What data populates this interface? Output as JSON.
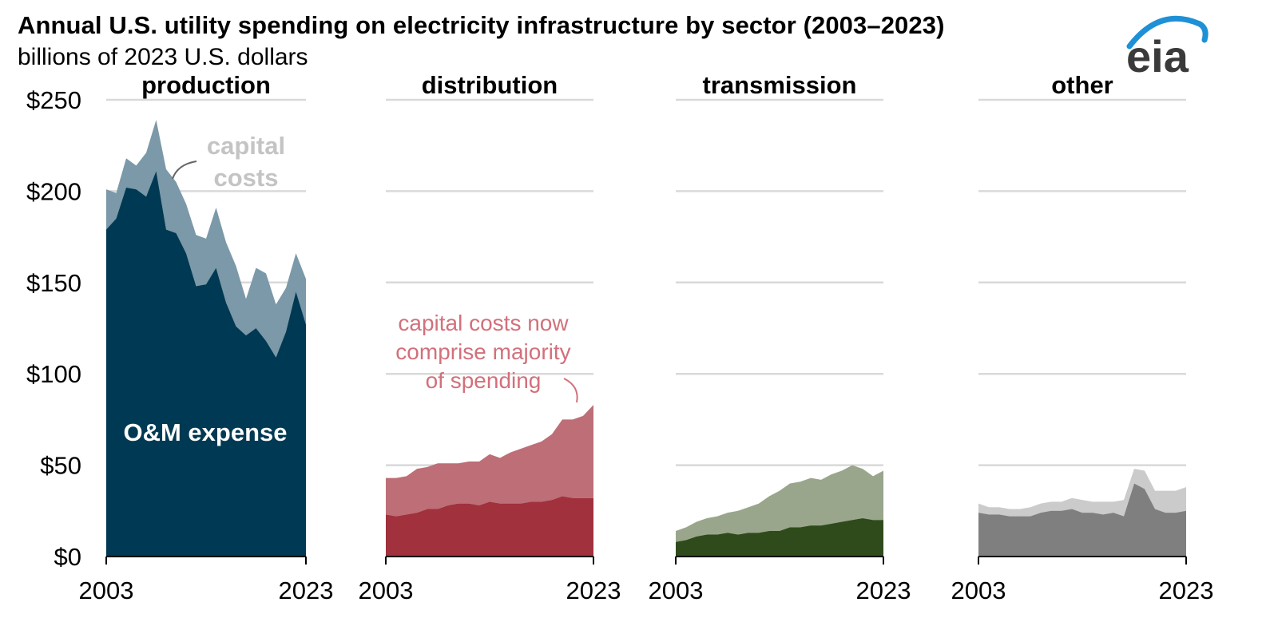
{
  "header": {
    "title": "Annual U.S. utility spending on electricity infrastructure by sector (2003–2023)",
    "subtitle": "billions of 2023 U.S. dollars",
    "logo_text": "eia"
  },
  "colors": {
    "production_om": "#003953",
    "production_capital": "#7b99a8",
    "distribution_om": "#a0313d",
    "distribution_capital": "#bd6e77",
    "transmission_om": "#2f4b1b",
    "transmission_capital": "#99a68c",
    "other_om": "#7f7f7f",
    "other_capital": "#cbcbcb",
    "grid": "#d9d9d9",
    "annotation_gray": "#c4c4c4",
    "annotation_pink": "#d2707b",
    "logo_blue": "#1e90d6"
  },
  "chart_data": {
    "type": "area",
    "title": "Annual U.S. utility spending on electricity infrastructure by sector (2003–2023)",
    "ylabel": "billions of 2023 U.S. dollars",
    "ylim": [
      0,
      250
    ],
    "yticks": [
      0,
      50,
      100,
      150,
      200,
      250
    ],
    "ytick_labels": [
      "$0",
      "$50",
      "$100",
      "$150",
      "$200",
      "$250"
    ],
    "x": [
      2003,
      2004,
      2005,
      2006,
      2007,
      2008,
      2009,
      2010,
      2011,
      2012,
      2013,
      2014,
      2015,
      2016,
      2017,
      2018,
      2019,
      2020,
      2021,
      2022,
      2023
    ],
    "x_tick_labels": [
      "2003",
      "2023"
    ],
    "stacked": true,
    "panels": [
      {
        "name": "production",
        "series": [
          {
            "name": "O&M expense",
            "values": [
              179,
              185,
              202,
              201,
              197,
              211,
              179,
              177,
              166,
              148,
              149,
              158,
              139,
              126,
              121,
              125,
              118,
              109,
              123,
              145,
              127
            ]
          },
          {
            "name": "capital costs",
            "values": [
              22,
              14,
              16,
              13,
              24,
              28,
              33,
              28,
              27,
              28,
              25,
              33,
              33,
              33,
              20,
              33,
              37,
              29,
              24,
              21,
              25
            ]
          }
        ],
        "annotations": [
          "capital costs",
          "O&M expense"
        ]
      },
      {
        "name": "distribution",
        "series": [
          {
            "name": "O&M expense",
            "values": [
              23,
              22,
              23,
              24,
              26,
              26,
              28,
              29,
              29,
              28,
              30,
              29,
              29,
              29,
              30,
              30,
              31,
              33,
              32,
              32,
              32
            ]
          },
          {
            "name": "capital costs",
            "values": [
              20,
              21,
              21,
              24,
              23,
              25,
              23,
              22,
              23,
              24,
              26,
              25,
              28,
              30,
              31,
              33,
              36,
              42,
              43,
              45,
              51
            ]
          }
        ],
        "annotations": [
          "capital costs now comprise majority of spending"
        ]
      },
      {
        "name": "transmission",
        "series": [
          {
            "name": "O&M expense",
            "values": [
              8,
              9,
              11,
              12,
              12,
              13,
              12,
              13,
              13,
              14,
              14,
              16,
              16,
              17,
              17,
              18,
              19,
              20,
              21,
              20,
              20
            ]
          },
          {
            "name": "capital costs",
            "values": [
              6,
              7,
              8,
              9,
              10,
              11,
              13,
              14,
              16,
              19,
              22,
              24,
              25,
              26,
              25,
              27,
              28,
              30,
              27,
              24,
              27
            ]
          }
        ]
      },
      {
        "name": "other",
        "series": [
          {
            "name": "O&M expense",
            "values": [
              24,
              23,
              23,
              22,
              22,
              22,
              24,
              25,
              25,
              26,
              24,
              24,
              23,
              24,
              22,
              40,
              37,
              26,
              24,
              24,
              25
            ]
          },
          {
            "name": "capital costs",
            "values": [
              5,
              4,
              4,
              4,
              4,
              5,
              5,
              5,
              5,
              6,
              7,
              6,
              7,
              6,
              9,
              8,
              10,
              10,
              12,
              12,
              13
            ]
          }
        ]
      }
    ]
  }
}
